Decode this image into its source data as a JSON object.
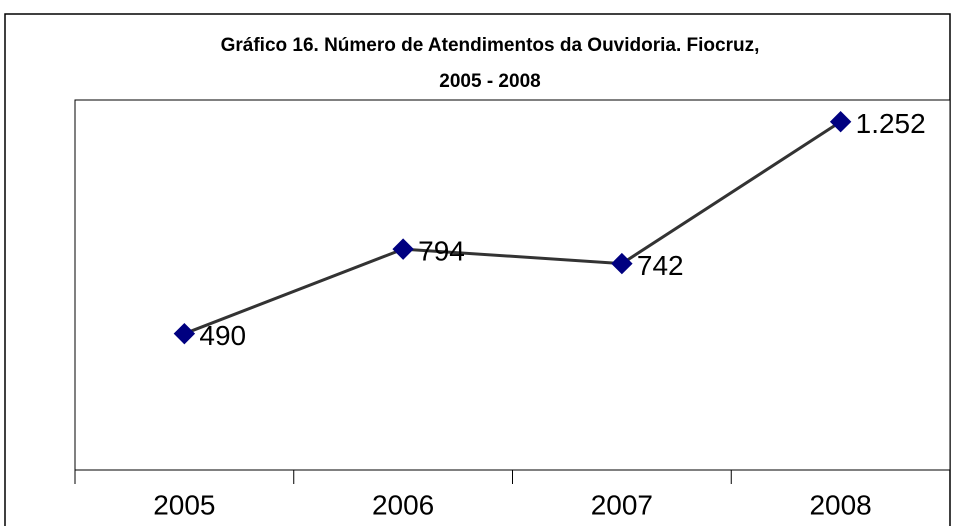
{
  "chart_data": {
    "type": "line",
    "title": [
      "Gráfico 16. Número de Atendimentos da Ouvidoria. Fiocruz,",
      "2005 - 2008"
    ],
    "categories": [
      "2005",
      "2006",
      "2007",
      "2008"
    ],
    "series": [
      {
        "values": [
          490,
          794,
          742,
          1252
        ],
        "value_labels": [
          "490",
          "794",
          "742",
          "1.252"
        ],
        "color": "#000080",
        "line_color": "#333333"
      }
    ],
    "ylim": [
      0,
      1330
    ]
  }
}
